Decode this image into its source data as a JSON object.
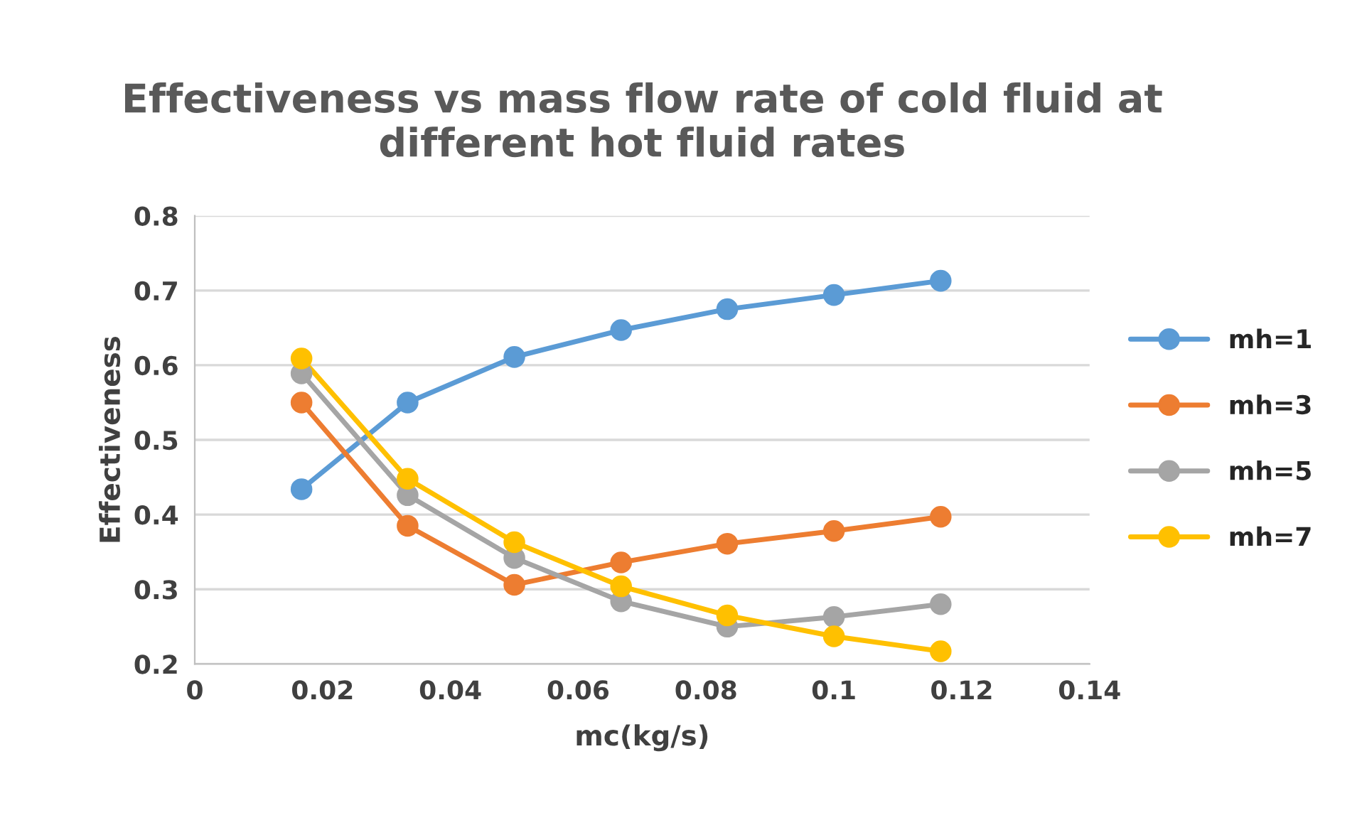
{
  "chart_data": {
    "type": "line",
    "title": "Effectiveness vs mass flow rate of cold fluid at\ndifferent hot fluid rates",
    "xlabel": "mc(kg/s)",
    "ylabel": "Effectiveness",
    "x": [
      0.0167,
      0.0333,
      0.05,
      0.0667,
      0.0833,
      0.1,
      0.1167
    ],
    "series": [
      {
        "name": "mh=1",
        "color": "#5b9bd5",
        "values": [
          0.434,
          0.55,
          0.611,
          0.647,
          0.675,
          0.694,
          0.713
        ]
      },
      {
        "name": "mh=3",
        "color": "#ed7d31",
        "values": [
          0.55,
          0.385,
          0.306,
          0.336,
          0.361,
          0.378,
          0.397
        ]
      },
      {
        "name": "mh=5",
        "color": "#a5a5a5",
        "values": [
          0.589,
          0.426,
          0.342,
          0.284,
          0.25,
          0.263,
          0.28
        ]
      },
      {
        "name": "mh=7",
        "color": "#ffc000",
        "values": [
          0.609,
          0.448,
          0.363,
          0.304,
          0.265,
          0.237,
          0.217
        ]
      }
    ],
    "xlim": [
      0,
      0.14
    ],
    "xticks": [
      0,
      0.02,
      0.04,
      0.06,
      0.08,
      0.1,
      0.12,
      0.14
    ],
    "ylim": [
      0.2,
      0.8
    ],
    "yticks": [
      0.2,
      0.3,
      0.4,
      0.5,
      0.6,
      0.7,
      0.8
    ],
    "grid": "y",
    "legend": "right",
    "marker": "circle",
    "line_style": "solid"
  }
}
